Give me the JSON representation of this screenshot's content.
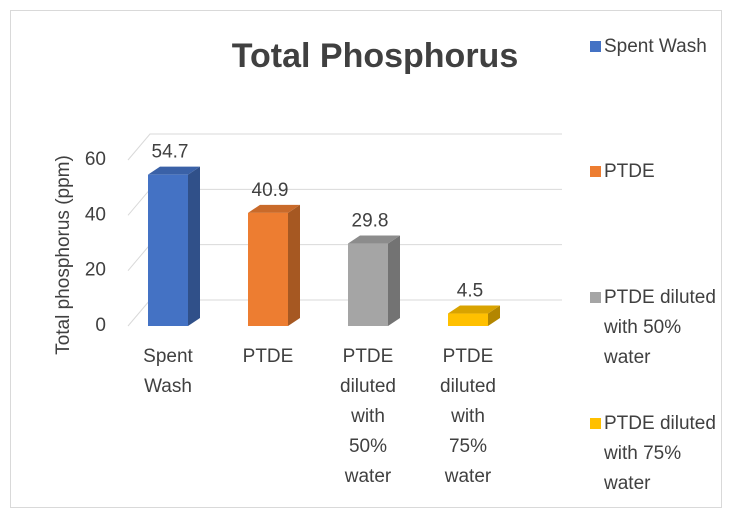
{
  "chart_data": {
    "type": "bar3d",
    "title": "Total Phosphorus",
    "y_label": "Total phosphorus (ppm)",
    "categories": [
      "Spent Wash",
      "PTDE",
      "PTDE diluted with 50% water",
      "PTDE diluted with 75% water"
    ],
    "values": [
      54.7,
      40.9,
      29.8,
      4.5
    ],
    "colors": [
      "#4472c4",
      "#ed7d31",
      "#a5a5a5",
      "#ffc000"
    ],
    "ylim": [
      0,
      60
    ],
    "yticks": [
      0,
      20,
      40,
      60
    ],
    "grid": true,
    "legend": "right"
  }
}
